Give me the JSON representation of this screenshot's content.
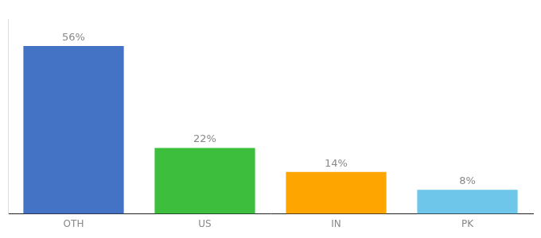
{
  "chart_data": {
    "type": "bar",
    "categories": [
      "OTH",
      "US",
      "IN",
      "PK"
    ],
    "values": [
      56,
      22,
      14,
      8
    ],
    "value_labels": [
      "56%",
      "22%",
      "14%",
      "8%"
    ],
    "colors": [
      "#4472C4",
      "#3DBF3D",
      "#FFA500",
      "#6EC6EA"
    ],
    "ylim": [
      0,
      65
    ],
    "grid": false,
    "data_labels": true,
    "tick_labels": "x"
  }
}
